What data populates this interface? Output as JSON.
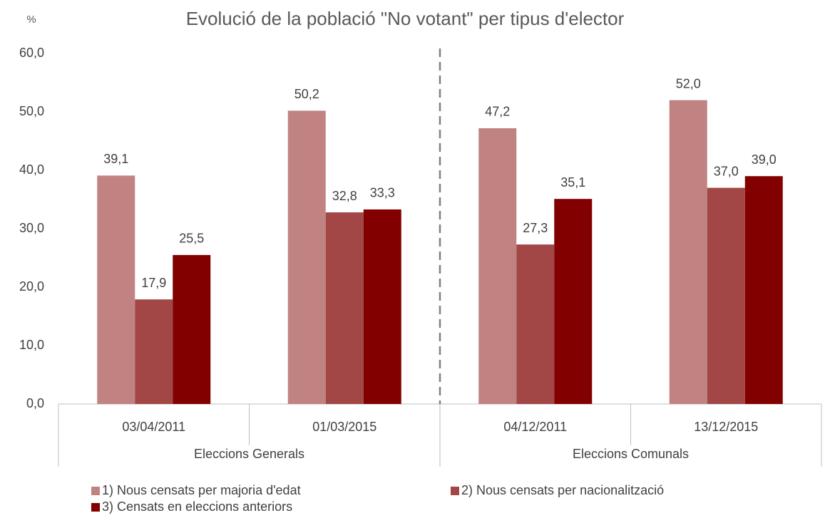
{
  "chart_data": {
    "type": "bar",
    "title": "Evolució de la població \"No votant\" per tipus d'elector",
    "y_label": "%",
    "categories": [
      "03/04/2011",
      "01/03/2015",
      "04/12/2011",
      "13/12/2015"
    ],
    "groups": [
      "Eleccions Generals",
      "Eleccions Comunals"
    ],
    "series": [
      {
        "name": "1) Nous censats per majoria d'edat",
        "color": "#c18282",
        "values": [
          39.1,
          50.2,
          47.2,
          52.0
        ],
        "value_labels": [
          "39,1",
          "50,2",
          "47,2",
          "52,0"
        ]
      },
      {
        "name": "2) Nous censats per nacionalització",
        "color": "#a34646",
        "values": [
          17.9,
          32.8,
          27.3,
          37.0
        ],
        "value_labels": [
          "17,9",
          "32,8",
          "27,3",
          "37,0"
        ]
      },
      {
        "name": "3) Censats en eleccions anteriors",
        "color": "#830000",
        "values": [
          25.5,
          33.3,
          35.1,
          39.0
        ],
        "value_labels": [
          "25,5",
          "33,3",
          "35,1",
          "39,0"
        ]
      }
    ],
    "ylim": [
      0,
      60
    ],
    "yticks": [
      {
        "value": 0,
        "label": "0,0"
      },
      {
        "value": 10,
        "label": "10,0"
      },
      {
        "value": 20,
        "label": "20,0"
      },
      {
        "value": 30,
        "label": "30,0"
      },
      {
        "value": 40,
        "label": "40,0"
      },
      {
        "value": 50,
        "label": "50,0"
      },
      {
        "value": 60,
        "label": "60,0"
      }
    ],
    "grid": false
  }
}
